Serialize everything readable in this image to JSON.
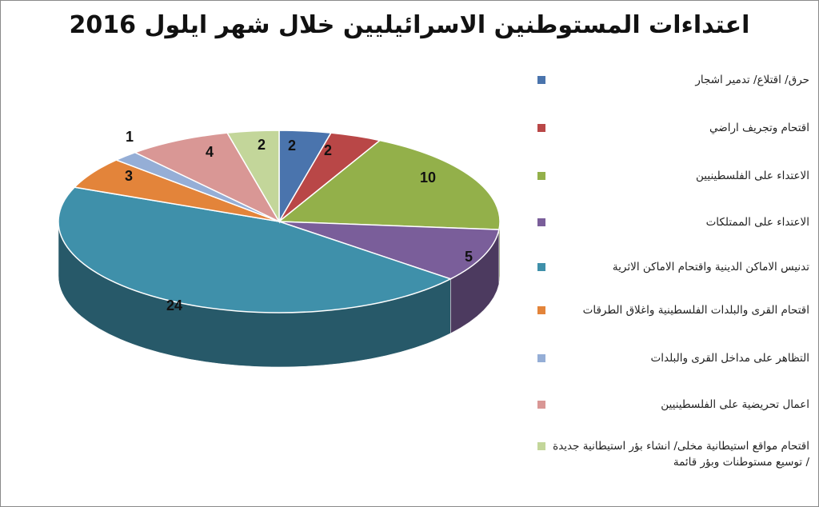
{
  "chart_data": {
    "type": "pie",
    "title": "اعتداءات المستوطنين الاسرائيليين خلال شهر ايلول 2016",
    "slices": [
      {
        "label": "حرق/ اقتلاع/ تدمير اشجار",
        "value": 2,
        "color": "#4a74ad"
      },
      {
        "label": "اقتحام وتجريف اراضي",
        "value": 2,
        "color": "#b94747"
      },
      {
        "label": "الاعتداء على الفلسطينيين",
        "value": 10,
        "color": "#93b04a"
      },
      {
        "label": "الاعتداء على الممتلكات",
        "value": 5,
        "color": "#7a5e9a"
      },
      {
        "label": "تدنيس الاماكن الدينية واقتحام الاماكن الاثرية",
        "value": 24,
        "color": "#3f90aa"
      },
      {
        "label": "اقتحام القرى والبلدات الفلسطينية واغلاق الطرقات",
        "value": 3,
        "color": "#e3843a"
      },
      {
        "label": "التظاهر على مداخل القرى والبلدات",
        "value": 1,
        "color": "#95aed6"
      },
      {
        "label": "اعمال تحريضية على الفلسطينيين",
        "value": 4,
        "color": "#d99795"
      },
      {
        "label": "اقتحام مواقع استيطانية مخلى/ انشاء بؤر استيطانية جديدة / توسيع مستوطنات وبؤر قائمة",
        "value": 2,
        "color": "#c3d69a"
      }
    ],
    "legend_position": "right",
    "style": "3d"
  }
}
